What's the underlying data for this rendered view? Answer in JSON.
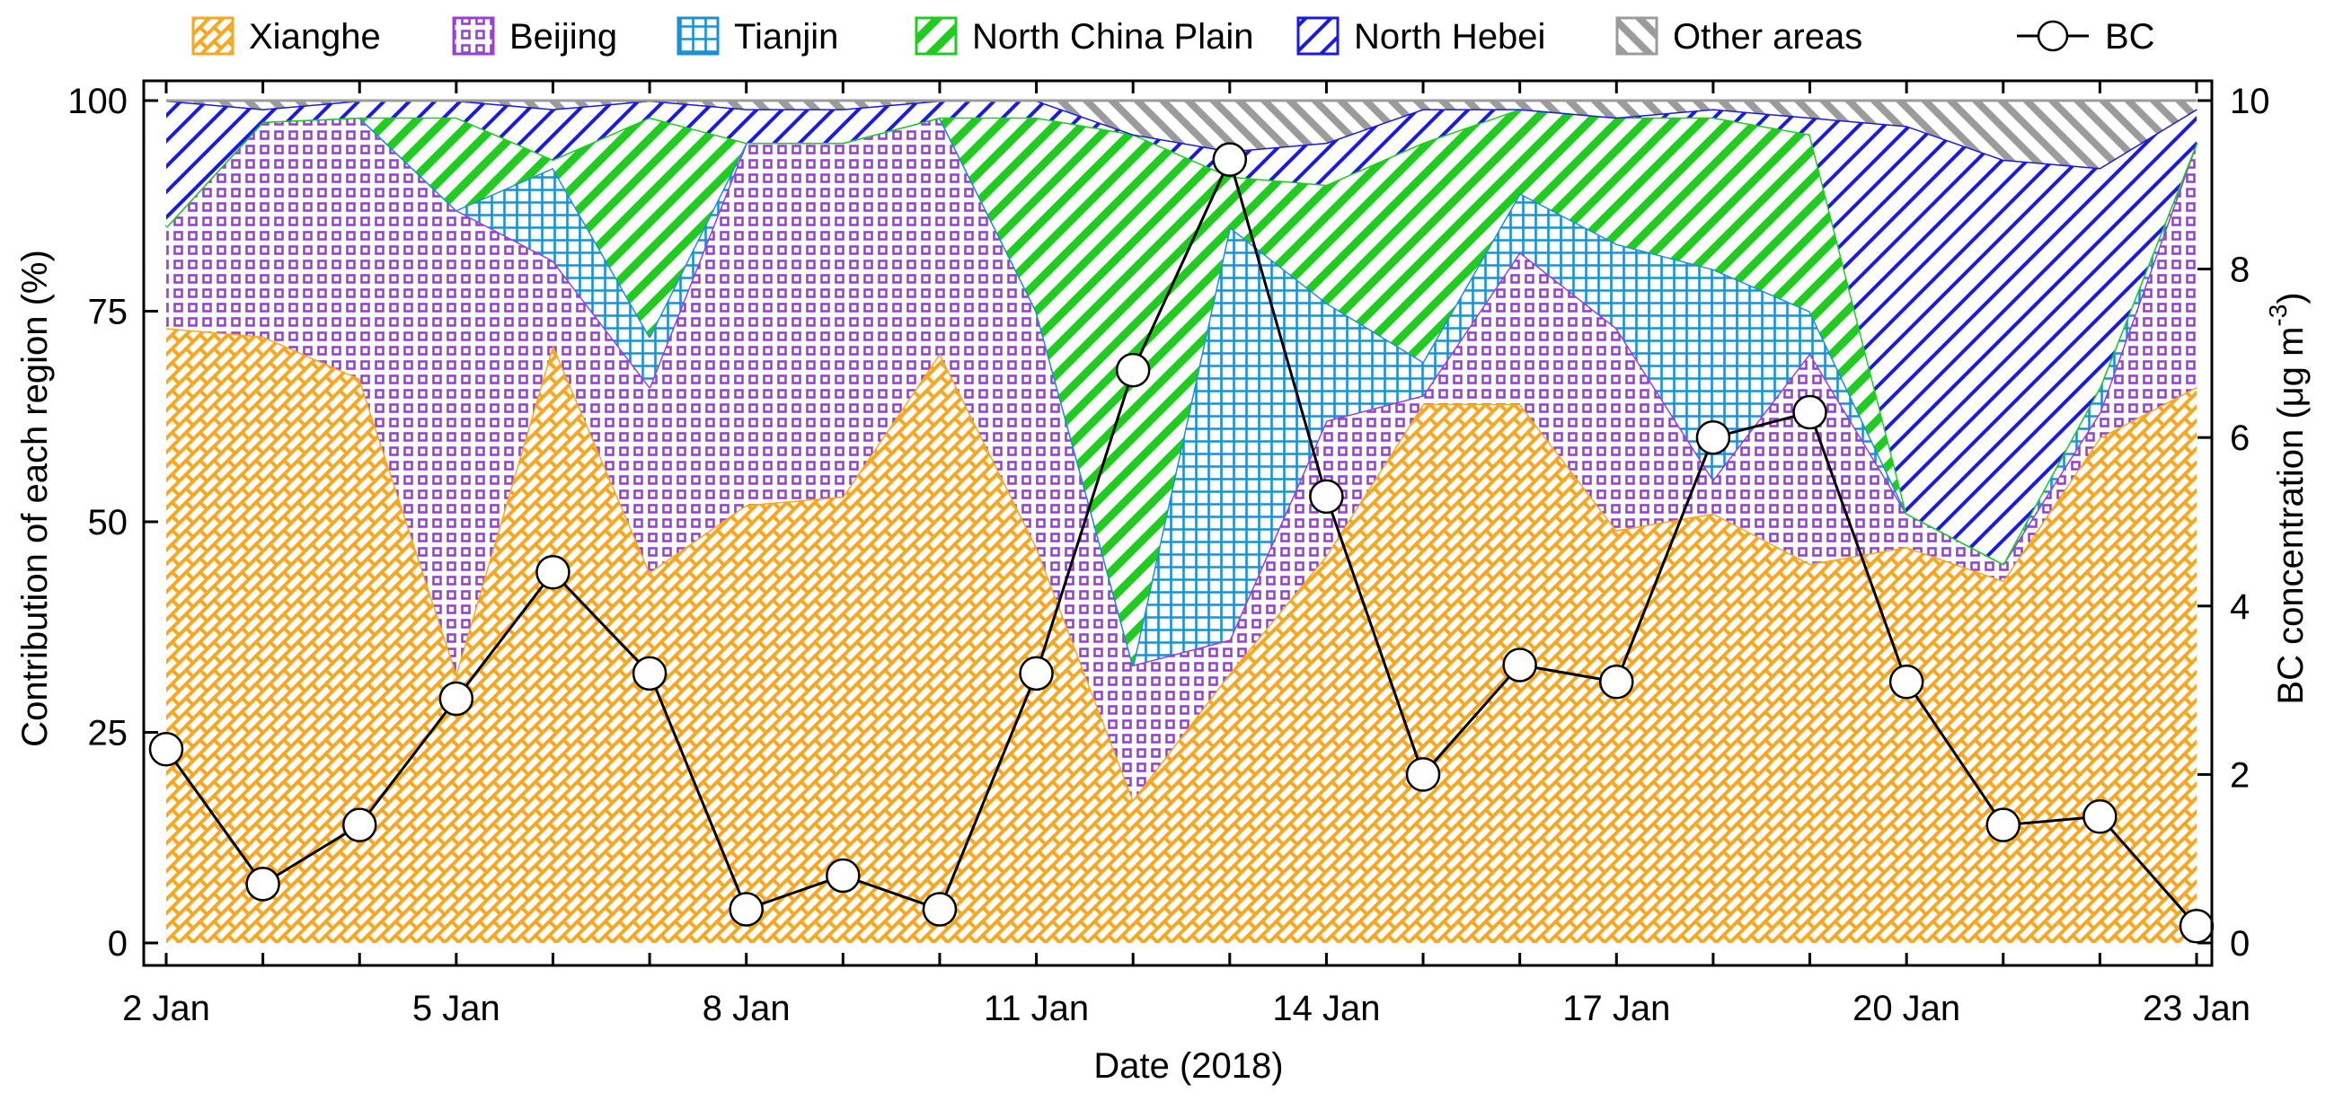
{
  "chart_data": {
    "type": "area",
    "stacked": true,
    "secondary_type": "line",
    "xlabel": "Date (2018)",
    "ylabel_left": "Contribution of each region (%)",
    "ylabel_right_main": "BC concentration (μg m",
    "ylabel_right_sup": "-3",
    "ylabel_right_close": ")",
    "xlim": [
      2,
      23
    ],
    "ylim_left": [
      0,
      100
    ],
    "ylim_right": [
      0,
      10
    ],
    "x_ticks": [
      2,
      3,
      4,
      5,
      6,
      7,
      8,
      9,
      10,
      11,
      12,
      13,
      14,
      15,
      16,
      17,
      18,
      19,
      20,
      21,
      22,
      23
    ],
    "x_tick_labels": [
      {
        "x": 2,
        "label": "2 Jan"
      },
      {
        "x": 5,
        "label": "5 Jan"
      },
      {
        "x": 8,
        "label": "8 Jan"
      },
      {
        "x": 11,
        "label": "11 Jan"
      },
      {
        "x": 14,
        "label": "14 Jan"
      },
      {
        "x": 17,
        "label": "17 Jan"
      },
      {
        "x": 20,
        "label": "20 Jan"
      },
      {
        "x": 23,
        "label": "23 Jan"
      }
    ],
    "y_left_ticks": [
      0,
      25,
      50,
      75,
      100
    ],
    "y_right_ticks": [
      0,
      2,
      4,
      6,
      8,
      10
    ],
    "legend_position": "top",
    "x": [
      2,
      3,
      4,
      5,
      6,
      7,
      8,
      9,
      10,
      11,
      12,
      13,
      14,
      15,
      16,
      17,
      18,
      19,
      20,
      21,
      22,
      23
    ],
    "series": [
      {
        "name": "Xianghe",
        "color": "#f7a823",
        "pattern": "brick",
        "values": [
          73,
          72,
          67,
          32,
          71,
          44,
          52,
          53,
          70,
          47,
          17,
          32,
          46,
          64,
          64,
          49,
          51,
          45,
          47,
          43,
          60,
          66
        ]
      },
      {
        "name": "Beijing",
        "color": "#9b3fd8",
        "pattern": "checker",
        "values": [
          12,
          25.5,
          31,
          55,
          10,
          22,
          43,
          42,
          28,
          28,
          16,
          4,
          16,
          1,
          18,
          24,
          4,
          25,
          4,
          2,
          3,
          29
        ]
      },
      {
        "name": "Tianjin",
        "color": "#1e90d2",
        "pattern": "grid",
        "values": [
          0,
          0,
          0,
          0,
          11,
          6,
          0,
          0,
          0,
          0,
          0,
          49,
          14,
          4,
          7,
          10,
          25,
          5,
          0,
          0,
          3,
          0
        ]
      },
      {
        "name": "North China Plain",
        "color": "#1fcc1f",
        "pattern": "thick-diagonal",
        "values": [
          0,
          0,
          0,
          11,
          1,
          26,
          0,
          0,
          0,
          23,
          63,
          6,
          14,
          26,
          10,
          15,
          18,
          21,
          0,
          0,
          0,
          0
        ]
      },
      {
        "name": "North Hebei",
        "color": "#1a1ae0",
        "pattern": "thin-diagonal",
        "values": [
          15,
          1.5,
          2,
          2,
          6,
          2,
          4,
          4,
          2,
          2,
          0,
          3,
          5,
          4,
          0,
          0,
          1,
          2,
          46,
          48,
          26,
          4
        ]
      },
      {
        "name": "Other areas",
        "color": "#9b9b9b",
        "pattern": "back-diagonal",
        "values": [
          0,
          1,
          0,
          0,
          1,
          0,
          1,
          1,
          0,
          0,
          4,
          6,
          5,
          1,
          1,
          2,
          1,
          2,
          3,
          7,
          8,
          1
        ]
      }
    ],
    "bc_series": {
      "name": "BC",
      "values": [
        2.3,
        0.7,
        1.4,
        2.9,
        4.4,
        3.2,
        0.4,
        0.8,
        0.4,
        3.2,
        6.8,
        9.3,
        5.3,
        2.0,
        3.3,
        3.1,
        6.0,
        6.3,
        3.1,
        1.4,
        1.5,
        0.2
      ]
    }
  }
}
